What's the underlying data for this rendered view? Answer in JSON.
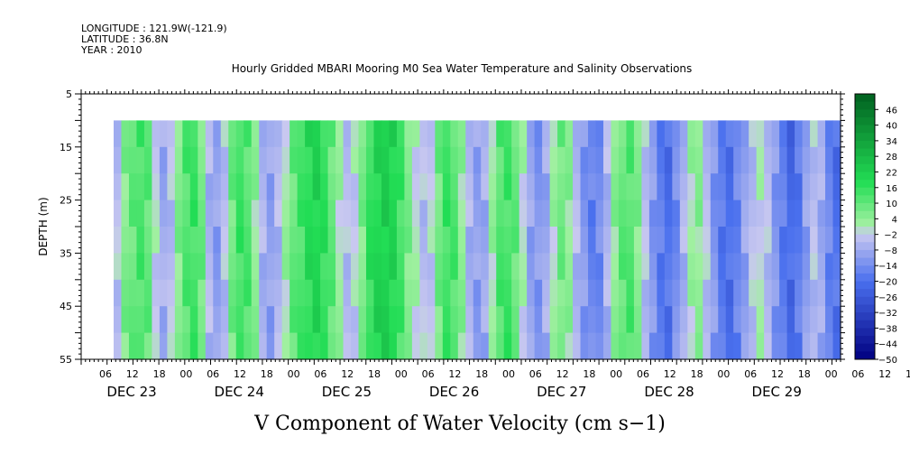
{
  "header": {
    "longitude": "LONGITUDE : 121.9W(-121.9)",
    "latitude": "LATITUDE : 36.8N",
    "year": "YEAR : 2010",
    "title": "Hourly Gridded MBARI Mooring M0 Sea Water Temperature and Salinity Observations"
  },
  "chart_data": {
    "type": "heatmap",
    "title": "Hourly Gridded MBARI Mooring M0 Sea Water Temperature and Salinity Observations",
    "xlabel": "",
    "ylabel": "DEPTH (m)",
    "colorbar_label": "V Component of Water Velocity (cm s-1)",
    "y_ticks": [
      5,
      15,
      25,
      35,
      45,
      55
    ],
    "y_range": [
      5,
      55
    ],
    "y_inverted": true,
    "data_depth_range": [
      10,
      55
    ],
    "x_range_hours": [
      0,
      174
    ],
    "hour_ticks": [
      "06",
      "12",
      "18",
      "00",
      "06",
      "12",
      "18",
      "00",
      "06",
      "12",
      "18",
      "00",
      "06",
      "12",
      "18",
      "00",
      "06",
      "12",
      "18",
      "00",
      "06",
      "12",
      "18",
      "00",
      "06",
      "12",
      "18",
      "00",
      "06",
      "12",
      "18",
      "00"
    ],
    "date_labels": [
      "DEC 23",
      "DEC 24",
      "DEC 25",
      "DEC 26",
      "DEC 27",
      "DEC 28",
      "DEC 29"
    ],
    "colorbar_levels": [
      46,
      40,
      34,
      28,
      22,
      16,
      10,
      4,
      -2,
      -8,
      -14,
      -20,
      -26,
      -32,
      -38,
      -44,
      -50
    ],
    "colorbar_range": [
      -50,
      52
    ],
    "colors": {
      "positive_hi": "#006020",
      "positive_mid": "#22dd55",
      "positive_lo": "#a0f0a0",
      "near_zero": "#c8c8f0",
      "negative_mid": "#4a70ee",
      "negative_hi": "#000080"
    },
    "column_profile_cm_s": [
      -4,
      6,
      10,
      13,
      10,
      -2,
      -8,
      -4,
      6,
      12,
      14,
      8,
      -6,
      -10,
      -4,
      8,
      14,
      12,
      4,
      -6,
      -10,
      -6,
      2,
      10,
      14,
      18,
      20,
      16,
      10,
      2,
      -4,
      -2,
      6,
      16,
      20,
      22,
      20,
      14,
      6,
      0,
      -4,
      -2,
      8,
      14,
      12,
      4,
      -6,
      -10,
      -8,
      2,
      12,
      14,
      10,
      0,
      -10,
      -12,
      -8,
      2,
      8,
      4,
      -6,
      -12,
      -16,
      -14,
      -6,
      4,
      10,
      12,
      6,
      -4,
      -12,
      -18,
      -20,
      -14,
      -6,
      2,
      4,
      -4,
      -12,
      -18,
      -20,
      -16,
      -10,
      -4,
      0,
      -4,
      -12,
      -18,
      -22,
      -18,
      -10,
      -4,
      -8,
      -16,
      -20
    ]
  },
  "xlabel_bottom": "V Component of Water Velocity (cm s−1)"
}
